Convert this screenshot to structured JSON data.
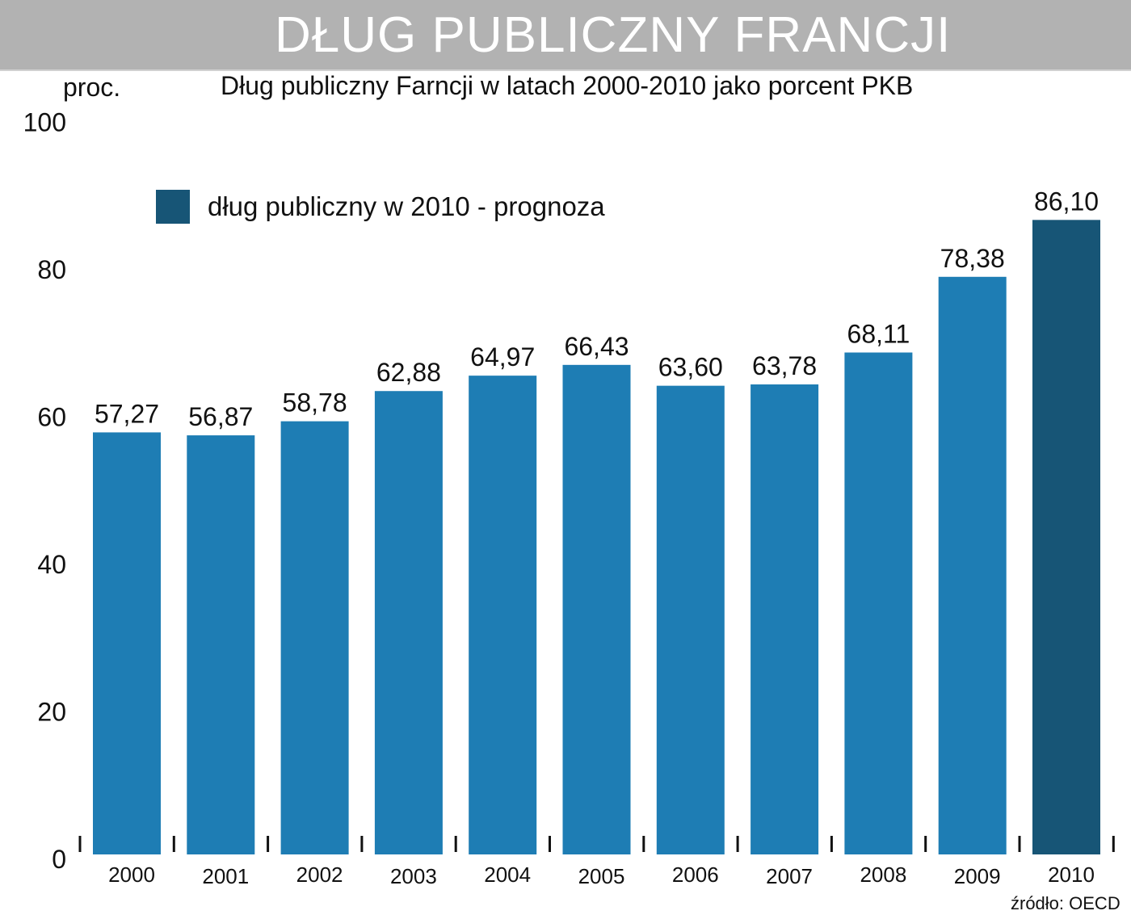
{
  "header": {
    "title": "DŁUG PUBLICZNY FRANCJI"
  },
  "source": "źródło: OECD",
  "colors": {
    "bar": "#1e7db4",
    "forecast": "#175576",
    "title_bar": "#b2b2b2"
  },
  "chart_data": {
    "type": "bar",
    "title": "Dług publiczny Farncji w latach 2000-2010 jako porcent PKB",
    "ylabel": "proc.",
    "xlabel": "",
    "ylim": [
      0,
      100
    ],
    "yticks": [
      "0",
      "20",
      "40",
      "60",
      "80",
      "100"
    ],
    "grid": false,
    "categories": [
      "2000",
      "2001",
      "2002",
      "2003",
      "2004",
      "2005",
      "2006",
      "2007",
      "2008",
      "2009",
      "2010"
    ],
    "values": [
      57.27,
      56.87,
      58.78,
      62.88,
      64.97,
      66.43,
      63.6,
      63.78,
      68.11,
      78.38,
      86.1
    ],
    "value_labels": [
      "57,27",
      "56,87",
      "58,78",
      "62,88",
      "64,97",
      "66,43",
      "63,60",
      "63,78",
      "68,11",
      "78,38",
      "86,10"
    ],
    "forecast_index": 10,
    "legend": {
      "label": "dług publiczny w 2010 - prognoza",
      "placement": "top-left"
    }
  }
}
